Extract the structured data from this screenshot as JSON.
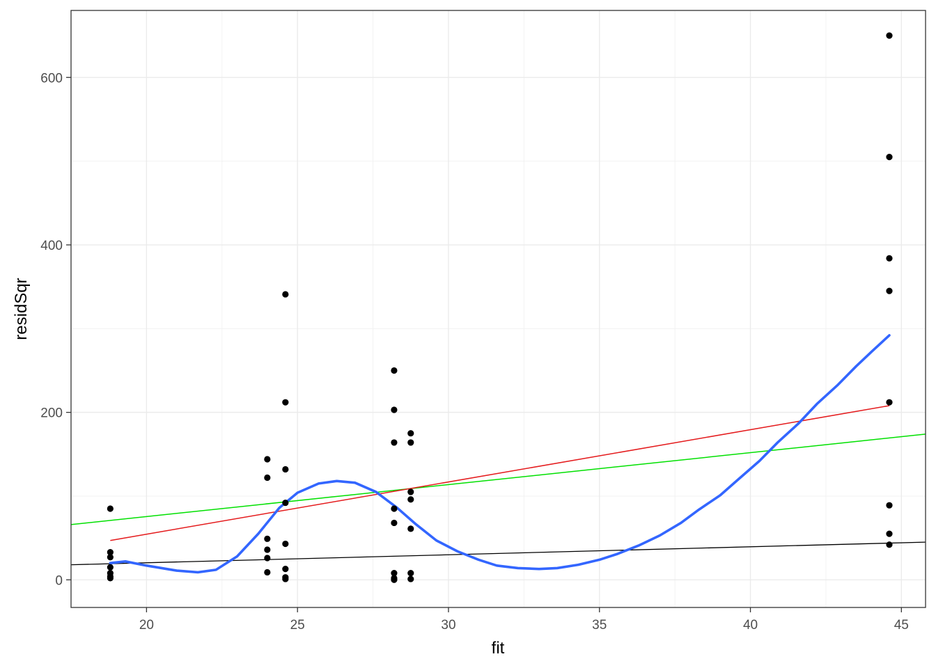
{
  "chart_data": {
    "type": "scatter",
    "title": "",
    "xlabel": "fit",
    "ylabel": "residSqr",
    "xlim": [
      17.5,
      45.8
    ],
    "ylim": [
      -33,
      680
    ],
    "x_ticks": [
      20,
      25,
      30,
      35,
      40,
      45
    ],
    "y_ticks": [
      0,
      200,
      400,
      600
    ],
    "x_tick_labels": [
      "20",
      "25",
      "30",
      "35",
      "40",
      "45"
    ],
    "y_tick_labels": [
      "0",
      "200",
      "400",
      "600"
    ],
    "grid": true,
    "theme": "bw",
    "points": [
      {
        "x": 18.8,
        "y": 85
      },
      {
        "x": 18.8,
        "y": 33
      },
      {
        "x": 18.8,
        "y": 27
      },
      {
        "x": 18.8,
        "y": 15
      },
      {
        "x": 18.8,
        "y": 8
      },
      {
        "x": 18.8,
        "y": 4
      },
      {
        "x": 18.8,
        "y": 2
      },
      {
        "x": 24.0,
        "y": 144
      },
      {
        "x": 24.0,
        "y": 122
      },
      {
        "x": 24.0,
        "y": 49
      },
      {
        "x": 24.0,
        "y": 36
      },
      {
        "x": 24.0,
        "y": 26
      },
      {
        "x": 24.0,
        "y": 9
      },
      {
        "x": 24.6,
        "y": 341
      },
      {
        "x": 24.6,
        "y": 212
      },
      {
        "x": 24.6,
        "y": 132
      },
      {
        "x": 24.6,
        "y": 92
      },
      {
        "x": 24.6,
        "y": 43
      },
      {
        "x": 24.6,
        "y": 13
      },
      {
        "x": 24.6,
        "y": 3
      },
      {
        "x": 24.6,
        "y": 1
      },
      {
        "x": 28.2,
        "y": 250
      },
      {
        "x": 28.2,
        "y": 203
      },
      {
        "x": 28.2,
        "y": 164
      },
      {
        "x": 28.2,
        "y": 85
      },
      {
        "x": 28.2,
        "y": 68
      },
      {
        "x": 28.2,
        "y": 8
      },
      {
        "x": 28.2,
        "y": 2
      },
      {
        "x": 28.2,
        "y": 0
      },
      {
        "x": 28.75,
        "y": 175
      },
      {
        "x": 28.75,
        "y": 164
      },
      {
        "x": 28.75,
        "y": 105
      },
      {
        "x": 28.75,
        "y": 96
      },
      {
        "x": 28.75,
        "y": 61
      },
      {
        "x": 28.75,
        "y": 8
      },
      {
        "x": 28.75,
        "y": 1
      },
      {
        "x": 44.6,
        "y": 650
      },
      {
        "x": 44.6,
        "y": 505
      },
      {
        "x": 44.6,
        "y": 384
      },
      {
        "x": 44.6,
        "y": 345
      },
      {
        "x": 44.6,
        "y": 212
      },
      {
        "x": 44.6,
        "y": 89
      },
      {
        "x": 44.6,
        "y": 55
      },
      {
        "x": 44.6,
        "y": 42
      }
    ],
    "point_color": "#000000",
    "lines": [
      {
        "color": "#000000",
        "width": 1.3,
        "points": [
          [
            17.5,
            18
          ],
          [
            45.8,
            45
          ]
        ]
      },
      {
        "color": "#00e000",
        "width": 1.5,
        "points": [
          [
            17.5,
            66
          ],
          [
            45.8,
            174
          ]
        ]
      },
      {
        "color": "#e41a1c",
        "width": 1.5,
        "points": [
          [
            18.8,
            47
          ],
          [
            44.6,
            208
          ]
        ]
      }
    ],
    "smooth": {
      "color": "#3366ff",
      "width": 3.6,
      "points": [
        [
          18.8,
          20
        ],
        [
          19.3,
          22
        ],
        [
          20.0,
          17
        ],
        [
          21.0,
          11
        ],
        [
          21.7,
          9
        ],
        [
          22.3,
          12
        ],
        [
          23.0,
          28
        ],
        [
          23.7,
          55
        ],
        [
          24.4,
          86
        ],
        [
          25.0,
          104
        ],
        [
          25.7,
          115
        ],
        [
          26.3,
          118
        ],
        [
          26.9,
          116
        ],
        [
          27.6,
          105
        ],
        [
          28.3,
          86
        ],
        [
          28.9,
          67
        ],
        [
          29.6,
          47
        ],
        [
          30.3,
          34
        ],
        [
          31.0,
          24
        ],
        [
          31.6,
          17
        ],
        [
          32.3,
          14
        ],
        [
          33.0,
          13
        ],
        [
          33.6,
          14
        ],
        [
          34.3,
          18
        ],
        [
          35.0,
          24
        ],
        [
          35.6,
          31
        ],
        [
          36.3,
          41
        ],
        [
          37.0,
          53
        ],
        [
          37.7,
          68
        ],
        [
          38.3,
          84
        ],
        [
          39.0,
          101
        ],
        [
          39.6,
          120
        ],
        [
          40.3,
          142
        ],
        [
          40.9,
          164
        ],
        [
          41.6,
          187
        ],
        [
          42.2,
          210
        ],
        [
          42.9,
          233
        ],
        [
          43.5,
          255
        ],
        [
          44.0,
          272
        ],
        [
          44.6,
          292
        ]
      ]
    }
  }
}
